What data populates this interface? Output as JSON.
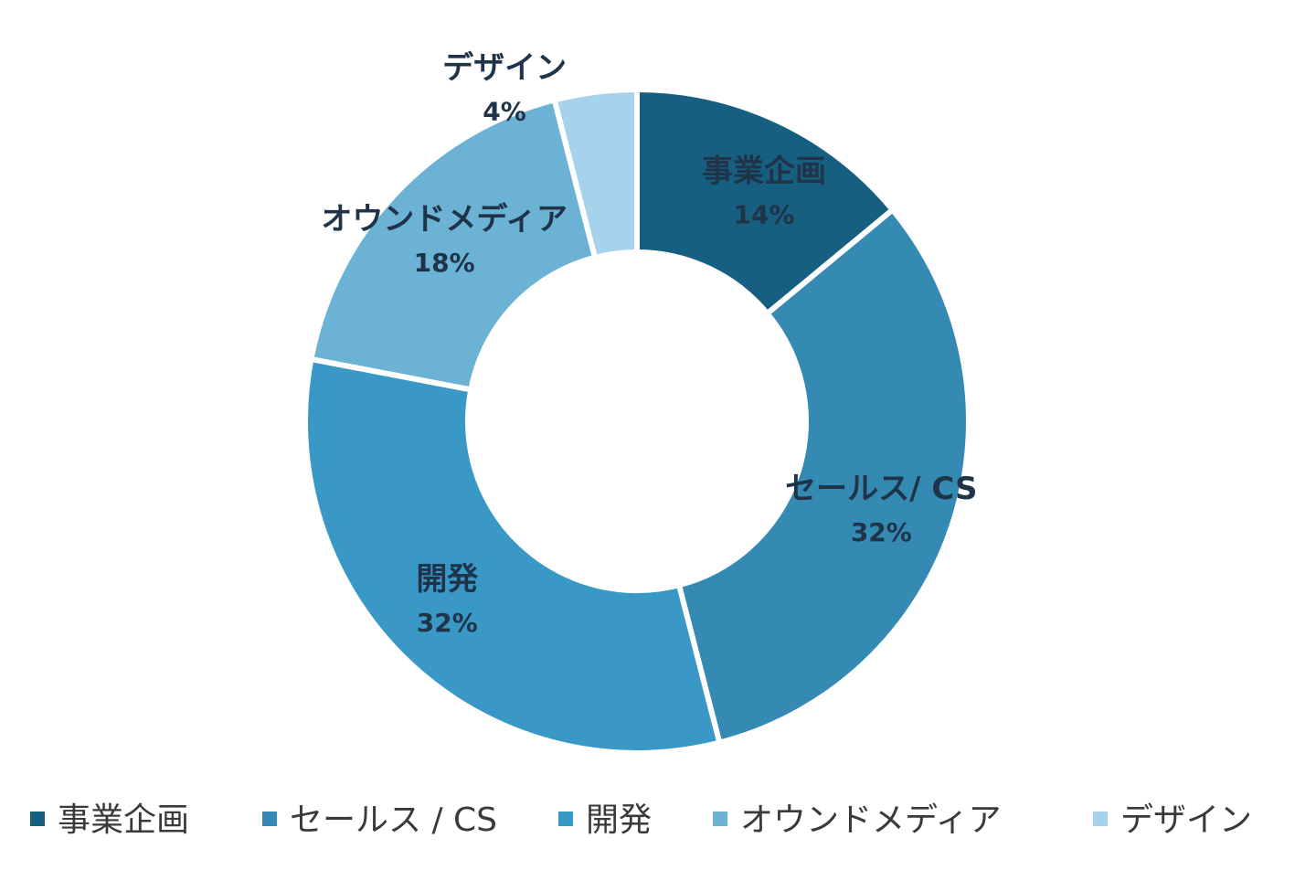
{
  "chart_data": {
    "type": "pie",
    "variant": "donut",
    "categories": [
      "事業企画",
      "セールス/ CS",
      "開発",
      "オウンドメディア",
      "デザイン"
    ],
    "values": [
      14,
      32,
      32,
      18,
      4
    ],
    "data_labels": [
      "14%",
      "32%",
      "32%",
      "18%",
      "4%"
    ],
    "colors": [
      "#175f81",
      "#358ab4",
      "#3a98c7",
      "#6cb2d4",
      "#a6d3eb"
    ],
    "legend": {
      "placement": "bottom",
      "entries": [
        "事業企画",
        "セールス / CS",
        "開発",
        "オウンドメディア",
        "デザイン"
      ]
    }
  }
}
